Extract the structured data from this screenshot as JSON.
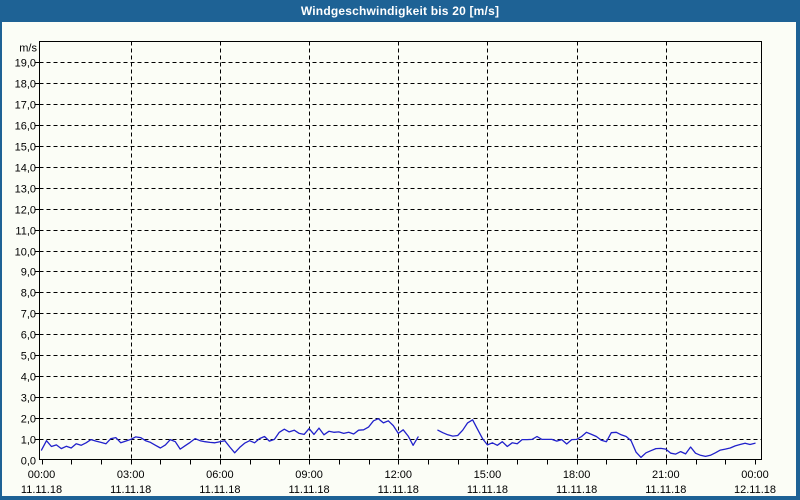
{
  "window": {
    "kind": "chart-panel"
  },
  "colors": {
    "titlebar_bg": "#1e6295",
    "titlebar_text": "#ffffff",
    "page_border": "#1e6295",
    "background": "#fbfdf6",
    "line": "#2121cb",
    "grid": "#000000",
    "axis": "#000000",
    "label_text": "#000000"
  },
  "chart_data": {
    "type": "line",
    "title": "Windgeschwindigkeit bis 20 [m/s]",
    "xlabel": "",
    "ylabel": "m/s",
    "ylabel_unit": "m/s",
    "ylim": [
      0,
      20
    ],
    "ytick_step": 1.0,
    "ytick_labels": [
      "0,0",
      "1,0",
      "2,0",
      "3,0",
      "4,0",
      "5,0",
      "6,0",
      "7,0",
      "8,0",
      "9,0",
      "10,0",
      "11,0",
      "12,0",
      "13,0",
      "14,0",
      "15,0",
      "16,0",
      "17,0",
      "18,0",
      "19,0"
    ],
    "grid": "dashed",
    "legend_position": "none",
    "x_hours_span": 24,
    "x_minor_tick_hours": 1,
    "x_major_gridline_hours": [
      3,
      6,
      9,
      12,
      15,
      18,
      21
    ],
    "x_major_ticks": [
      {
        "hour": 0,
        "time": "00:00",
        "date": "11.11.18"
      },
      {
        "hour": 3,
        "time": "03:00",
        "date": "11.11.18"
      },
      {
        "hour": 6,
        "time": "06:00",
        "date": "11.11.18"
      },
      {
        "hour": 9,
        "time": "09:00",
        "date": "11.11.18"
      },
      {
        "hour": 12,
        "time": "12:00",
        "date": "11.11.18"
      },
      {
        "hour": 15,
        "time": "15:00",
        "date": "11.11.18"
      },
      {
        "hour": 18,
        "time": "18:00",
        "date": "11.11.18"
      },
      {
        "hour": 21,
        "time": "21:00",
        "date": "11.11.18"
      },
      {
        "hour": 24,
        "time": "00:00",
        "date": "12.11.18"
      }
    ],
    "series": [
      {
        "name": "Windgeschwindigkeit",
        "unit": "m/s",
        "start_time": "11.11.18 00:00",
        "interval_minutes": 10,
        "note": "null = Datenluecke ca. 12:40-13:10",
        "values": [
          0.45,
          0.9,
          0.62,
          0.7,
          0.52,
          0.63,
          0.55,
          0.75,
          0.68,
          0.8,
          0.95,
          0.88,
          0.82,
          0.75,
          1.0,
          1.05,
          0.8,
          0.88,
          0.96,
          1.08,
          1.05,
          0.9,
          0.82,
          0.68,
          0.55,
          0.7,
          0.95,
          0.85,
          0.5,
          0.66,
          0.82,
          1.0,
          0.9,
          0.85,
          0.82,
          0.8,
          0.85,
          0.9,
          0.6,
          0.32,
          0.58,
          0.78,
          0.9,
          0.8,
          1.0,
          1.1,
          0.88,
          0.96,
          1.3,
          1.45,
          1.32,
          1.4,
          1.25,
          1.2,
          1.48,
          1.2,
          1.5,
          1.18,
          1.35,
          1.3,
          1.32,
          1.25,
          1.3,
          1.22,
          1.4,
          1.42,
          1.55,
          1.85,
          1.95,
          1.75,
          1.85,
          1.62,
          1.25,
          1.42,
          1.12,
          0.68,
          1.08,
          null,
          null,
          null,
          1.4,
          1.28,
          1.18,
          1.12,
          1.15,
          1.4,
          1.75,
          1.9,
          1.45,
          1.0,
          0.7,
          0.8,
          0.68,
          0.85,
          0.62,
          0.8,
          0.75,
          0.95,
          0.95,
          0.96,
          1.1,
          0.96,
          0.96,
          0.96,
          0.88,
          0.95,
          0.74,
          0.95,
          0.96,
          1.1,
          1.3,
          1.2,
          1.1,
          0.92,
          0.85,
          1.28,
          1.3,
          1.18,
          1.1,
          0.9,
          0.35,
          0.1,
          0.32,
          0.42,
          0.52,
          0.53,
          0.5,
          0.3,
          0.26,
          0.38,
          0.27,
          0.6,
          0.3,
          0.2,
          0.15,
          0.2,
          0.32,
          0.45,
          0.5,
          0.55,
          0.65,
          0.72,
          0.78,
          0.72,
          0.78
        ]
      }
    ]
  }
}
